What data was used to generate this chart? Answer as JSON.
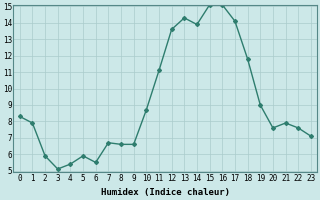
{
  "x": [
    0,
    1,
    2,
    3,
    4,
    5,
    6,
    7,
    8,
    9,
    10,
    11,
    12,
    13,
    14,
    15,
    16,
    17,
    18,
    19,
    20,
    21,
    22,
    23
  ],
  "y": [
    8.3,
    7.9,
    5.9,
    5.1,
    5.4,
    5.9,
    5.5,
    6.7,
    6.6,
    6.6,
    8.7,
    11.1,
    13.6,
    14.3,
    13.9,
    15.1,
    15.1,
    14.1,
    11.8,
    9.0,
    7.6,
    7.9,
    7.6,
    7.1
  ],
  "line_color": "#2e7d6e",
  "marker": "D",
  "marker_size": 2.0,
  "bg_color": "#cce8e8",
  "grid_color": "#aacccc",
  "xlabel": "Humidex (Indice chaleur)",
  "ylim": [
    5,
    15
  ],
  "xlim": [
    -0.5,
    23.5
  ],
  "yticks": [
    5,
    6,
    7,
    8,
    9,
    10,
    11,
    12,
    13,
    14,
    15
  ],
  "xticks": [
    0,
    1,
    2,
    3,
    4,
    5,
    6,
    7,
    8,
    9,
    10,
    11,
    12,
    13,
    14,
    15,
    16,
    17,
    18,
    19,
    20,
    21,
    22,
    23
  ],
  "xlabel_fontsize": 6.5,
  "tick_fontsize": 5.5,
  "line_width": 1.0
}
